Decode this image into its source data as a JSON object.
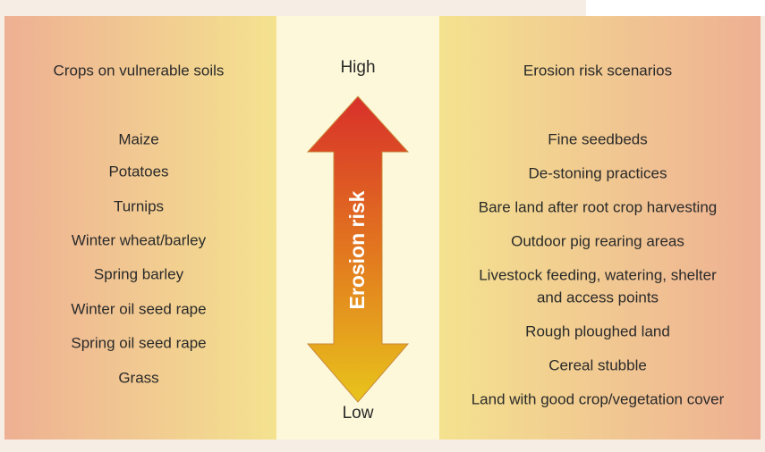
{
  "left": {
    "heading": "Crops on vulnerable soils",
    "items": [
      "Maize",
      "Potatoes",
      "Turnips",
      "Winter wheat/barley",
      "Spring barley",
      "Winter oil seed rape",
      "Spring oil seed rape",
      "Grass"
    ]
  },
  "center": {
    "high": "High",
    "low": "Low",
    "arrow_label": "Erosion risk"
  },
  "right": {
    "heading": "Erosion risk scenarios",
    "items": [
      [
        "Fine seedbeds"
      ],
      [
        "De-stoning practices"
      ],
      [
        "Bare land after root crop harvesting"
      ],
      [
        "Outdoor pig rearing areas"
      ],
      [
        "Livestock feeding, watering, shelter",
        "and access points"
      ],
      [
        "Rough ploughed land"
      ],
      [
        "Cereal stubble"
      ],
      [
        "Land with good crop/vegetation cover"
      ]
    ]
  }
}
